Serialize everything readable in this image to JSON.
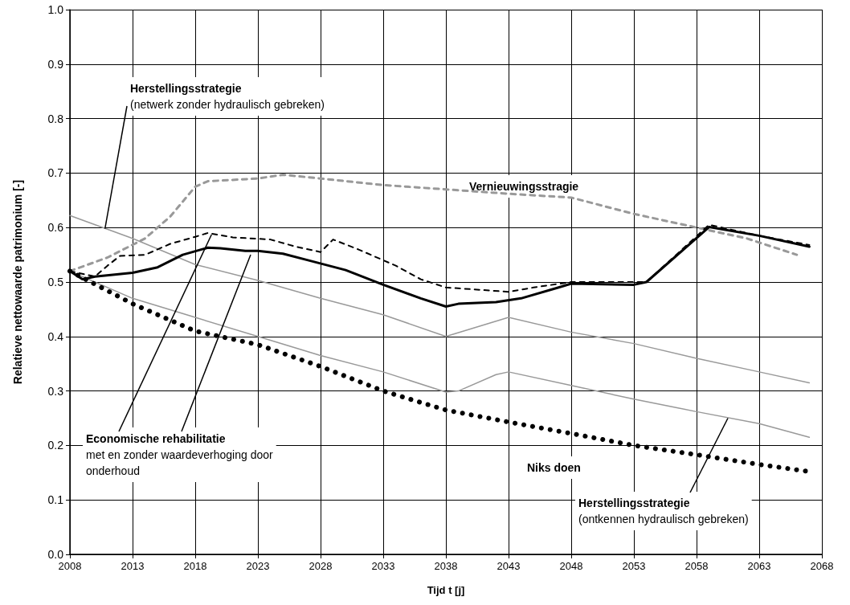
{
  "chart_data": {
    "type": "line",
    "xlabel": "Tijd t [j]",
    "ylabel": "Relatieve nettowaarde patrimonium [-]",
    "xlim": [
      2008,
      2068
    ],
    "xticks": [
      2008,
      2013,
      2018,
      2023,
      2028,
      2033,
      2038,
      2043,
      2048,
      2053,
      2058,
      2063,
      2068
    ],
    "ylim": [
      0,
      1
    ],
    "yticks": [
      {
        "value": 0,
        "label": "0.0"
      },
      0.1,
      0.2,
      0.3,
      0.4,
      0.5,
      0.6,
      0.7,
      0.8,
      0.9,
      {
        "value": 1,
        "label": "1.0"
      }
    ],
    "grid": true,
    "marker": "none",
    "series": [
      {
        "color": "#999999",
        "line_style": "dashed",
        "x": [
          2008,
          2011,
          2014,
          2016,
          2018,
          2019,
          2023,
          2025,
          2028,
          2033,
          2038,
          2043,
          2048,
          2053,
          2058,
          2062,
          2066
        ],
        "values": [
          0.52,
          0.545,
          0.58,
          0.62,
          0.675,
          0.685,
          0.69,
          0.697,
          0.69,
          0.678,
          0.67,
          0.662,
          0.655,
          0.625,
          0.6,
          0.58,
          0.55
        ]
      },
      {
        "color": "#999999",
        "line_style": "solid",
        "x": [
          2008,
          2013,
          2018,
          2023,
          2028,
          2033,
          2038,
          2043,
          2048,
          2053,
          2058,
          2063,
          2067
        ],
        "values": [
          0.622,
          0.58,
          0.532,
          0.503,
          0.47,
          0.44,
          0.4,
          0.435,
          0.408,
          0.387,
          0.36,
          0.335,
          0.315
        ]
      },
      {
        "color": "#999999",
        "line_style": "solid",
        "x": [
          2008,
          2013,
          2018,
          2023,
          2028,
          2033,
          2038,
          2039,
          2042,
          2043,
          2048,
          2053,
          2058,
          2063,
          2067
        ],
        "values": [
          0.52,
          0.47,
          0.435,
          0.4,
          0.365,
          0.335,
          0.298,
          0.3,
          0.33,
          0.335,
          0.31,
          0.285,
          0.262,
          0.24,
          0.215
        ]
      },
      {
        "color": "#000000",
        "line_style": "dashed",
        "x": [
          2008,
          2010,
          2011,
          2012,
          2014,
          2016,
          2018,
          2019,
          2021,
          2024,
          2026,
          2028,
          2029,
          2031,
          2034,
          2036,
          2038,
          2043,
          2045,
          2048,
          2054,
          2059,
          2063,
          2067
        ],
        "values": [
          0.52,
          0.51,
          0.53,
          0.548,
          0.55,
          0.57,
          0.583,
          0.59,
          0.582,
          0.578,
          0.565,
          0.555,
          0.578,
          0.56,
          0.53,
          0.505,
          0.49,
          0.482,
          0.49,
          0.5,
          0.5,
          0.605,
          0.585,
          0.568
        ]
      },
      {
        "color": "#000000",
        "line_style": "solid",
        "x": [
          2008,
          2009,
          2010,
          2013,
          2015,
          2017,
          2019,
          2020,
          2022,
          2023,
          2025,
          2027,
          2030,
          2033,
          2036,
          2038,
          2039,
          2042,
          2044,
          2047,
          2048,
          2053,
          2054,
          2059,
          2063,
          2067
        ],
        "values": [
          0.52,
          0.505,
          0.51,
          0.517,
          0.527,
          0.55,
          0.563,
          0.562,
          0.557,
          0.557,
          0.552,
          0.54,
          0.522,
          0.495,
          0.47,
          0.455,
          0.46,
          0.463,
          0.47,
          0.49,
          0.497,
          0.495,
          0.5,
          0.601,
          0.585,
          0.565
        ]
      },
      {
        "color": "#000000",
        "line_style": "dotted",
        "x": [
          2008,
          2013,
          2018,
          2023,
          2028,
          2033,
          2038,
          2043,
          2048,
          2053,
          2058,
          2063,
          2067
        ],
        "values": [
          0.52,
          0.46,
          0.41,
          0.385,
          0.345,
          0.3,
          0.265,
          0.243,
          0.222,
          0.2,
          0.183,
          0.165,
          0.152
        ]
      }
    ],
    "annotations": [
      {
        "text": "Herstellingsstrategie\n(netwerk zonder hydraulisch gebreken)",
        "x": 2010.8,
        "y": 0.598
      },
      "Vernieuwingsstragie",
      {
        "text": "Economische rehabilitatie\nmet en zonder waardeverhoging door\nonderhoud",
        "x": 2019.3,
        "y": 0.587
      },
      "Niks doen",
      {
        "text": "Herstellingsstrategie\n(ontkennen hydraulisch gebreken)",
        "x": 2060.5,
        "y": 0.25
      }
    ]
  }
}
